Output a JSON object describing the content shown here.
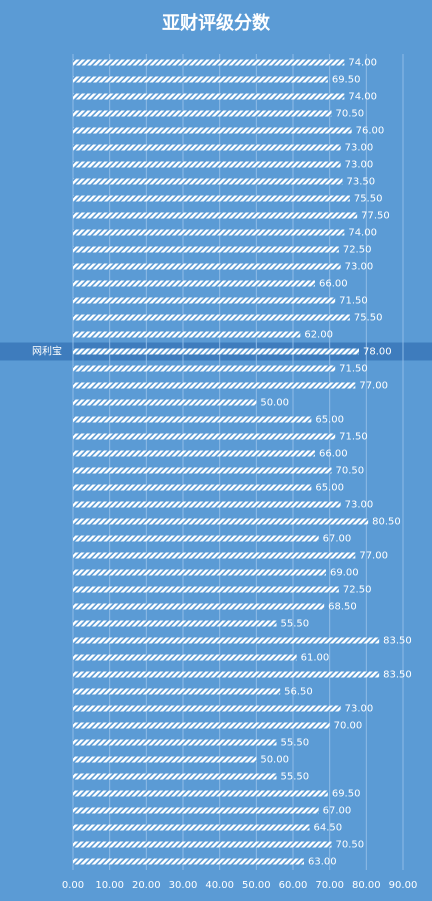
{
  "chart_data": {
    "type": "bar",
    "orientation": "horizontal",
    "title": "亚财评级分数",
    "categories": [
      null,
      null,
      null,
      null,
      null,
      null,
      null,
      null,
      null,
      null,
      null,
      null,
      null,
      null,
      null,
      null,
      null,
      "网利宝",
      null,
      null,
      null,
      null,
      null,
      null,
      null,
      null,
      null,
      null,
      null,
      null,
      null,
      null,
      null,
      null,
      null,
      null,
      null,
      null,
      null,
      null,
      null,
      null,
      null,
      null,
      null,
      null,
      null,
      null
    ],
    "values": [
      74,
      69.5,
      74,
      70.5,
      76,
      73,
      73,
      73.5,
      75.5,
      77.5,
      74,
      72.5,
      73,
      66,
      71.5,
      75.5,
      62,
      78,
      71.5,
      77,
      50,
      65,
      71.5,
      66,
      70.5,
      65,
      73,
      80.5,
      67,
      77,
      69,
      72.5,
      68.5,
      55.5,
      83.5,
      61,
      83.5,
      56.5,
      73,
      70,
      55.5,
      50,
      55.5,
      69.5,
      67,
      64.5,
      70.5,
      63
    ],
    "value_labels": [
      "74.00",
      "69.50",
      "74.00",
      "70.50",
      "76.00",
      "73.00",
      "73.00",
      "73.50",
      "75.50",
      "77.50",
      "74.00",
      "72.50",
      "73.00",
      "66.00",
      "71.50",
      "75.50",
      "62.00",
      "78.00",
      "71.50",
      "77.00",
      "50.00",
      "65.00",
      "71.50",
      "66.00",
      "70.50",
      "65.00",
      "73.00",
      "80.50",
      "67.00",
      "77.00",
      "69.00",
      "72.50",
      "68.50",
      "55.50",
      "83.50",
      "61.00",
      "83.50",
      "56.50",
      "73.00",
      "70.00",
      "55.50",
      "50.00",
      "55.50",
      "69.50",
      "67.00",
      "64.50",
      "70.50",
      "63.00"
    ],
    "color": "#ffffff",
    "xlim": [
      0,
      90
    ],
    "xticks": [
      {
        "value": 0,
        "label": "0.00"
      },
      {
        "value": 10,
        "label": "10.00"
      },
      {
        "value": 20,
        "label": "20.00"
      },
      {
        "value": 30,
        "label": "30.00"
      },
      {
        "value": 40,
        "label": "40.00"
      },
      {
        "value": 50,
        "label": "50.00"
      },
      {
        "value": 60,
        "label": "60.00"
      },
      {
        "value": 70,
        "label": "70.00"
      },
      {
        "value": 80,
        "label": "80.00"
      },
      {
        "value": 90,
        "label": "90.00"
      }
    ],
    "grid": true
  }
}
